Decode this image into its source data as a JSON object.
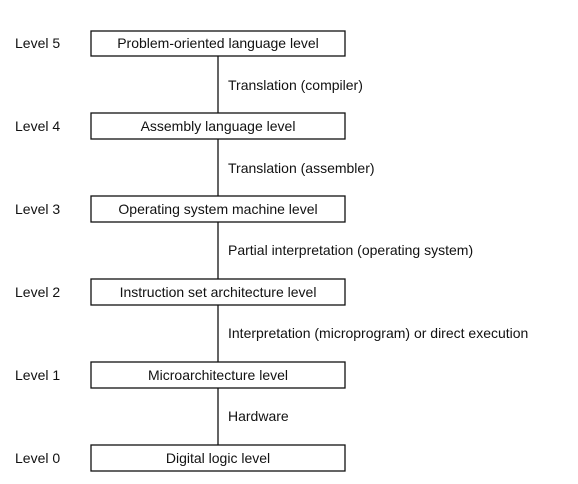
{
  "levels": [
    {
      "level": "Level 5",
      "name": "Problem-oriented language level"
    },
    {
      "level": "Level 4",
      "name": "Assembly language level"
    },
    {
      "level": "Level 3",
      "name": "Operating system machine level"
    },
    {
      "level": "Level 2",
      "name": "Instruction set architecture level"
    },
    {
      "level": "Level 1",
      "name": "Microarchitecture level"
    },
    {
      "level": "Level 0",
      "name": "Digital logic level"
    }
  ],
  "transitions": [
    "Translation (compiler)",
    "Translation (assembler)",
    "Partial interpretation (operating system)",
    "Interpretation (microprogram) or direct execution",
    "Hardware"
  ]
}
